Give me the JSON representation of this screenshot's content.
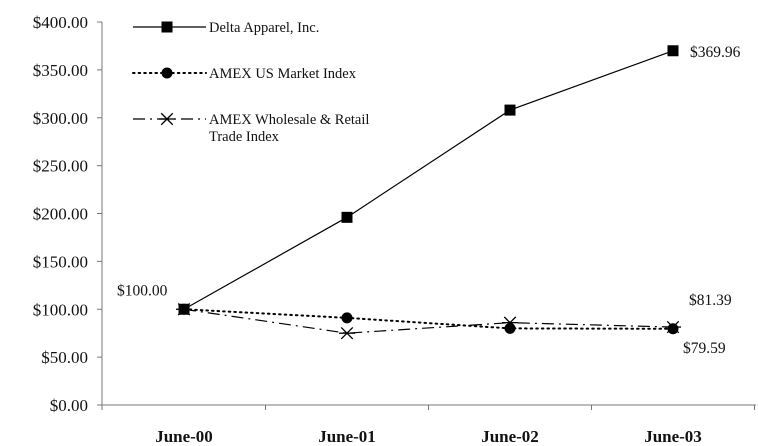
{
  "chart_data": {
    "type": "line",
    "title": "",
    "xlabel": "",
    "ylabel": "",
    "categories": [
      "June-00",
      "June-01",
      "June-02",
      "June-03"
    ],
    "ylim": [
      0,
      400
    ],
    "yticks": [
      "$0.00",
      "$50.00",
      "$100.00",
      "$150.00",
      "$200.00",
      "$250.00",
      "$300.00",
      "$350.00",
      "$400.00"
    ],
    "grid": false,
    "legend_position": "top-left",
    "series": [
      {
        "name": "Delta Apparel, Inc.",
        "values": [
          100,
          196,
          308,
          369.96
        ],
        "marker": "square",
        "line_style": "solid",
        "color": "#000000"
      },
      {
        "name": "AMEX US Market Index",
        "values": [
          100,
          91,
          80,
          79.59
        ],
        "marker": "circle",
        "line_style": "dotted",
        "color": "#000000"
      },
      {
        "name": "AMEX Wholesale & Retail Trade Index",
        "name_lines": [
          "AMEX Wholesale & Retail",
          "Trade Index"
        ],
        "values": [
          100,
          75,
          86,
          81.39
        ],
        "marker": "asterisk",
        "line_style": "dash-dot",
        "color": "#000000"
      }
    ],
    "annotations": [
      {
        "text": "$100.00",
        "series": 0,
        "index": 0
      },
      {
        "text": "$369.96",
        "series": 0,
        "index": 3
      },
      {
        "text": "$81.39",
        "series": 2,
        "index": 3
      },
      {
        "text": "$79.59",
        "series": 1,
        "index": 3
      }
    ]
  }
}
